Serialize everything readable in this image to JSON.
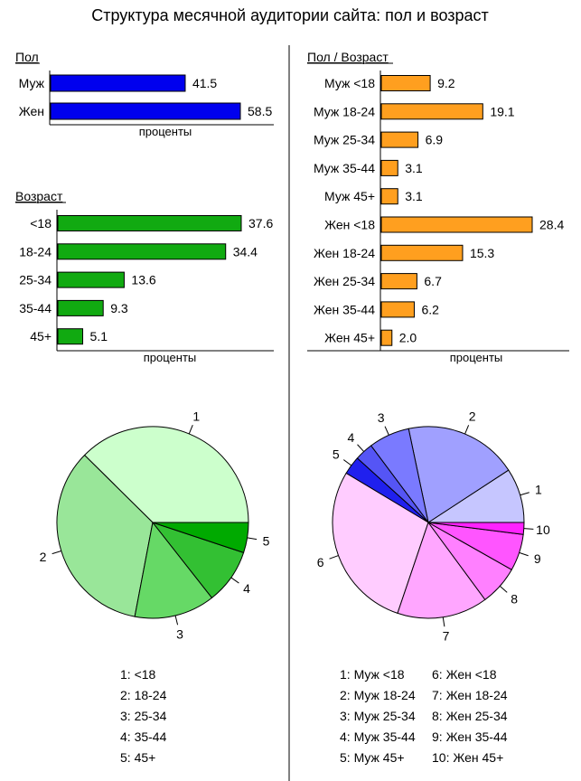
{
  "title": "Структура месячной аудитории сайта: пол и возраст",
  "colors": {
    "gender_bar": "#0000ee",
    "age_bar": "#11aa11",
    "gender_age_bar": "#ff9f1f",
    "age_pie": [
      "#ccffcc",
      "#99e699",
      "#66d966",
      "#33c033",
      "#00aa00"
    ],
    "gender_age_pie": [
      "#c6c6ff",
      "#a0a0ff",
      "#7a7aff",
      "#5555f5",
      "#2020ee",
      "#ffccff",
      "#ffa6ff",
      "#ff80ff",
      "#ff55ff",
      "#ff22ff"
    ]
  },
  "chart_data": [
    {
      "id": "gender",
      "type": "bar",
      "orientation": "horizontal",
      "title": "Пол",
      "xlabel": "проценты",
      "categories": [
        "Муж",
        "Жен"
      ],
      "values": [
        41.5,
        58.5
      ],
      "value_labels": [
        "41.5",
        "58.5"
      ],
      "xlim": [
        0,
        58.5
      ]
    },
    {
      "id": "age",
      "type": "bar",
      "orientation": "horizontal",
      "title": "Возраст",
      "xlabel": "проценты",
      "categories": [
        "<18",
        "18-24",
        "25-34",
        "35-44",
        "45+"
      ],
      "values": [
        37.6,
        34.4,
        13.6,
        9.3,
        5.1
      ],
      "value_labels": [
        "37.6",
        "34.4",
        "13.6",
        "9.3",
        "5.1"
      ],
      "xlim": [
        0,
        37.6
      ]
    },
    {
      "id": "gender_age",
      "type": "bar",
      "orientation": "horizontal",
      "title": "Пол / Возраст",
      "xlabel": "проценты",
      "categories": [
        "Муж <18",
        "Муж 18-24",
        "Муж 25-34",
        "Муж 35-44",
        "Муж 45+",
        "Жен <18",
        "Жен 18-24",
        "Жен 25-34",
        "Жен 35-44",
        "Жен 45+"
      ],
      "values": [
        9.2,
        19.1,
        6.9,
        3.1,
        3.1,
        28.4,
        15.3,
        6.7,
        6.2,
        2.0
      ],
      "value_labels": [
        "9.2",
        "19.1",
        "6.9",
        "3.1",
        "3.1",
        "28.4",
        "15.3",
        "6.7",
        "6.2",
        "2.0"
      ],
      "xlim": [
        0,
        28.4
      ]
    },
    {
      "id": "age_pie",
      "type": "pie",
      "slice_labels": [
        "1",
        "2",
        "3",
        "4",
        "5"
      ],
      "values": [
        37.6,
        34.4,
        13.6,
        9.3,
        5.1
      ],
      "legend": [
        "1: <18",
        "2: 18-24",
        "3: 25-34",
        "4: 35-44",
        "5: 45+"
      ]
    },
    {
      "id": "gender_age_pie",
      "type": "pie",
      "slice_labels": [
        "1",
        "2",
        "3",
        "4",
        "5",
        "6",
        "7",
        "8",
        "9",
        "10"
      ],
      "values": [
        9.2,
        19.1,
        6.9,
        3.1,
        3.1,
        28.4,
        15.3,
        6.7,
        6.2,
        2.0
      ],
      "legend": [
        "1: Муж <18",
        "2: Муж 18-24",
        "3: Муж 25-34",
        "4: Муж 35-44",
        "5: Муж 45+",
        "6: Жен <18",
        "7: Жен 18-24",
        "8: Жен 25-34",
        "9: Жен 35-44",
        "10: Жен 45+"
      ]
    }
  ]
}
